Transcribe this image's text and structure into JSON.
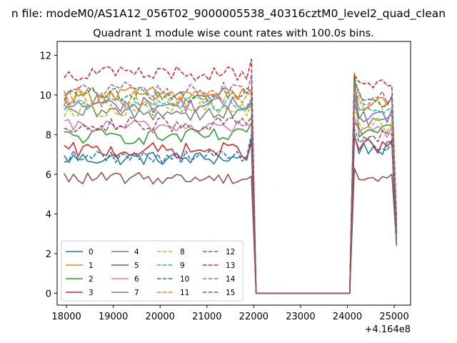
{
  "figure": {
    "suptitle": "n file: modeM0/AS1A12_056T02_9000005538_40316cztM0_level2_quad_clean",
    "title": "Quadrant 1 module wise count rates with 100.0s bins.",
    "x_offset_text": "+4.164e8"
  },
  "chart_data": {
    "type": "line",
    "title": "Quadrant 1 module wise count rates with 100.0s bins.",
    "xlabel": "",
    "ylabel": "",
    "x_offset": "+4.164e8",
    "xlim": [
      17800,
      25350
    ],
    "ylim": [
      -0.6,
      12.7
    ],
    "xticks": [
      18000,
      19000,
      20000,
      21000,
      22000,
      23000,
      24000,
      25000
    ],
    "yticks": [
      0,
      2,
      4,
      6,
      8,
      10,
      12
    ],
    "grid": false,
    "legend": {
      "placement": "lower-left",
      "columns": 4
    },
    "bin_width_s": 100,
    "segments": [
      {
        "x_start": 17950,
        "x_end": 21950
      },
      {
        "x_start": 22050,
        "x_end": 24050
      },
      {
        "x_start": 24150,
        "x_end": 25050
      }
    ],
    "series": [
      {
        "name": "0",
        "color": "#1f77b4",
        "dash": "solid",
        "level1": 6.8,
        "jitter1": 0.35,
        "end1": 7.8,
        "level2": 7.3,
        "jitter2": 0.35,
        "start2": 8.0,
        "end2": 2.4
      },
      {
        "name": "1",
        "color": "#ff7f0e",
        "dash": "solid",
        "level1": 10.0,
        "jitter1": 0.45,
        "end1": 10.3,
        "level2": 9.5,
        "jitter2": 0.4,
        "start2": 10.6,
        "end2": 3.6
      },
      {
        "name": "2",
        "color": "#2ca02c",
        "dash": "solid",
        "level1": 7.9,
        "jitter1": 0.4,
        "end1": 8.6,
        "level2": 8.1,
        "jitter2": 0.4,
        "start2": 11.1,
        "end2": 3.2
      },
      {
        "name": "3",
        "color": "#d62728",
        "dash": "solid",
        "level1": 7.2,
        "jitter1": 0.4,
        "end1": 7.6,
        "level2": 7.4,
        "jitter2": 0.4,
        "start2": 7.9,
        "end2": 3.0
      },
      {
        "name": "4",
        "color": "#9467bd",
        "dash": "solid",
        "level1": 9.5,
        "jitter1": 0.4,
        "end1": 9.7,
        "level2": 9.0,
        "jitter2": 0.4,
        "start2": 10.0,
        "end2": 3.4
      },
      {
        "name": "5",
        "color": "#8c564b",
        "dash": "solid",
        "level1": 5.8,
        "jitter1": 0.3,
        "end1": 5.9,
        "level2": 5.8,
        "jitter2": 0.3,
        "start2": 6.3,
        "end2": 2.5
      },
      {
        "name": "6",
        "color": "#e377c2",
        "dash": "solid",
        "level1": 8.4,
        "jitter1": 0.35,
        "end1": 8.5,
        "level2": 8.2,
        "jitter2": 0.35,
        "start2": 8.9,
        "end2": 3.1
      },
      {
        "name": "7",
        "color": "#7f7f7f",
        "dash": "solid",
        "level1": 9.1,
        "jitter1": 0.4,
        "end1": 9.4,
        "level2": 8.8,
        "jitter2": 0.4,
        "start2": 9.6,
        "end2": 3.3
      },
      {
        "name": "8",
        "color": "#bcbd22",
        "dash": "dashed",
        "level1": 9.3,
        "jitter1": 0.4,
        "end1": 9.6,
        "level2": 8.5,
        "jitter2": 0.4,
        "start2": 9.4,
        "end2": 3.3
      },
      {
        "name": "9",
        "color": "#17becf",
        "dash": "dashed",
        "level1": 9.6,
        "jitter1": 0.4,
        "end1": 9.8,
        "level2": 9.2,
        "jitter2": 0.4,
        "start2": 10.0,
        "end2": 3.4
      },
      {
        "name": "10",
        "color": "#1f77b4",
        "dash": "dashed",
        "level1": 6.9,
        "jitter1": 0.35,
        "end1": 8.0,
        "level2": 7.5,
        "jitter2": 0.35,
        "start2": 8.3,
        "end2": 2.6
      },
      {
        "name": "11",
        "color": "#ff7f0e",
        "dash": "dashed",
        "level1": 9.8,
        "jitter1": 0.45,
        "end1": 10.1,
        "level2": 9.6,
        "jitter2": 0.4,
        "start2": 10.4,
        "end2": 3.6
      },
      {
        "name": "12",
        "color": "#2ca02c",
        "dash": "dashed",
        "level1": 10.0,
        "jitter1": 0.4,
        "end1": 10.2,
        "level2": 9.8,
        "jitter2": 0.4,
        "start2": 10.9,
        "end2": 3.5
      },
      {
        "name": "13",
        "color": "#d62728",
        "dash": "dashed",
        "level1": 11.1,
        "jitter1": 0.4,
        "end1": 11.8,
        "level2": 10.4,
        "jitter2": 0.4,
        "start2": 11.0,
        "end2": 3.8
      },
      {
        "name": "14",
        "color": "#9467bd",
        "dash": "dashed",
        "level1": 10.2,
        "jitter1": 0.45,
        "end1": 11.0,
        "level2": 9.9,
        "jitter2": 0.4,
        "start2": 10.6,
        "end2": 3.6
      },
      {
        "name": "15",
        "color": "#8c564b",
        "dash": "dashed",
        "level1": 8.5,
        "jitter1": 0.4,
        "end1": 8.9,
        "level2": 8.0,
        "jitter2": 0.4,
        "start2": 8.6,
        "end2": 3.0
      }
    ]
  }
}
